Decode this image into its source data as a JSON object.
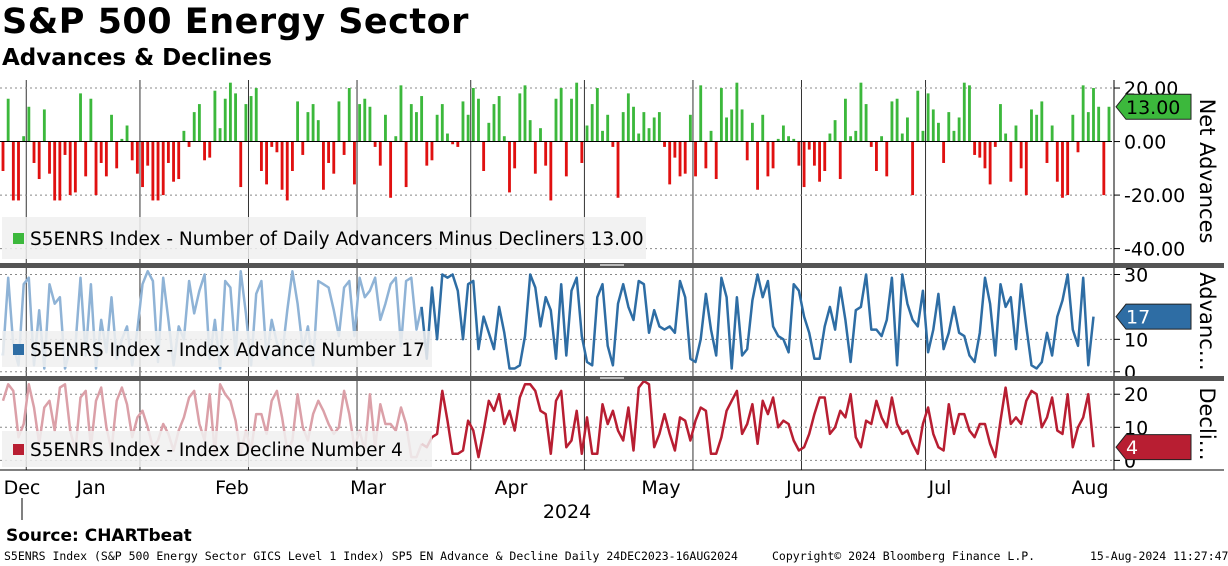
{
  "title": "S&P 500 Energy Sector",
  "subtitle": "Advances & Declines",
  "source": "Source: CHARTbeat",
  "footer": {
    "left": "S5ENRS Index (S&P 500 Energy Sector GICS Level 1 Index) SP5 EN Advance & Decline  Daily 24DEC2023-16AUG2024",
    "middle": "Copyright© 2024 Bloomberg Finance L.P.",
    "right": "15-Aug-2024 11:27:47"
  },
  "colors": {
    "up": "#3cb83c",
    "down": "#e01010",
    "advance_line": "#2e6da4",
    "advance_line_faded": "#8fb3d6",
    "decline_line": "#b81e32",
    "decline_line_faded": "#dba0a8",
    "divider": "#555555"
  },
  "chart_data": [
    {
      "type": "bar",
      "name": "net-advances",
      "ylabel": "Net Advances",
      "legend": "S5ENRS Index  - Number of Daily Advancers Minus Decliners 13.00",
      "last_value_label": "13.00",
      "yticks": [
        "20.00",
        "0.00",
        "-20.00",
        "-40.00"
      ],
      "ytick_values": [
        20,
        0,
        -20,
        -40
      ],
      "ylim": [
        -45,
        23
      ],
      "values": [
        -11,
        16,
        -22,
        -22,
        2,
        13,
        -8,
        -14,
        12,
        -12,
        -22,
        -22,
        -5,
        -20,
        -19,
        18,
        -13,
        16,
        -20,
        -8,
        -13,
        10,
        -10,
        1,
        6,
        -7,
        -12,
        -17,
        -9,
        -22,
        -22,
        -20,
        -8,
        -15,
        -14,
        4,
        -2,
        11,
        14,
        -7,
        -6,
        19,
        5,
        16,
        22,
        18,
        -17,
        14,
        17,
        20,
        -11,
        -16,
        -2,
        -4,
        -18,
        -22,
        -11,
        15,
        -5,
        11,
        14,
        8,
        -18,
        -8,
        -12,
        15,
        -5,
        20,
        -16,
        14,
        16,
        13,
        -2,
        -9,
        10,
        -21,
        2,
        21,
        -17,
        14,
        11,
        17,
        -9,
        -7,
        10,
        14,
        3,
        -1,
        -2,
        15,
        10,
        20,
        16,
        -11,
        7,
        14,
        17,
        2,
        -19,
        -10,
        18,
        21,
        8,
        -12,
        5,
        -9,
        -22,
        16,
        20,
        -13,
        16,
        22,
        -8,
        6,
        14,
        20,
        4,
        10,
        -2,
        -21,
        11,
        18,
        13,
        3,
        11,
        5,
        9,
        11,
        -2,
        -16,
        -6,
        -13,
        -12,
        10,
        -13,
        21,
        -10,
        4,
        -14,
        20,
        9,
        12,
        22,
        12,
        -7,
        7,
        -18,
        10,
        -13,
        -10,
        1,
        6,
        2,
        1,
        -9,
        -17,
        -3,
        -9,
        -15,
        -11,
        3,
        8,
        -14,
        16,
        2,
        4,
        22,
        14,
        -2,
        -11,
        2,
        -13,
        15,
        16,
        3,
        9,
        -20,
        19,
        4,
        18,
        12,
        7,
        -8,
        11,
        4,
        9,
        22,
        21,
        -5,
        -6,
        -10,
        -16,
        -2,
        14,
        3,
        -15,
        6,
        -10,
        -20,
        12,
        10,
        15,
        -8,
        6,
        -15,
        -21,
        -20,
        10,
        -4,
        21,
        11,
        20,
        13,
        -20,
        13
      ],
      "segments": [
        {
          "from": 0,
          "to": 1,
          "values": [
            -11,
            16,
            -22,
            -22
          ]
        }
      ]
    },
    {
      "type": "line",
      "name": "advance-number",
      "ylabel": "Advanc…",
      "legend": "S5ENRS Index  - Index Advance Number 17",
      "last_value_label": "17",
      "yticks": [
        "30",
        "10",
        "0"
      ],
      "ytick_values": [
        30,
        10,
        0
      ],
      "ylim": [
        -1,
        32
      ],
      "values": [
        5,
        29,
        8,
        2,
        27,
        29,
        2,
        19,
        1,
        27,
        21,
        23,
        1,
        7,
        8,
        29,
        5,
        27,
        1,
        16,
        6,
        23,
        4,
        10,
        14,
        2,
        13,
        27,
        31,
        28,
        3,
        29,
        16,
        2,
        14,
        10,
        28,
        18,
        25,
        30,
        4,
        16,
        1,
        28,
        26,
        5,
        31,
        18,
        2,
        24,
        28,
        4,
        16,
        9,
        5,
        19,
        31,
        21,
        7,
        14,
        2,
        28,
        27,
        26,
        19,
        11,
        26,
        28,
        11,
        29,
        23,
        25,
        29,
        16,
        21,
        27,
        29,
        8,
        28,
        29,
        13,
        20,
        4,
        26,
        10,
        30,
        29,
        30,
        25,
        10,
        27,
        28,
        7,
        17,
        12,
        7,
        20,
        12,
        1,
        1,
        2,
        11,
        30,
        26,
        14,
        23,
        19,
        4,
        27,
        5,
        25,
        29,
        11,
        3,
        2,
        23,
        27,
        8,
        2,
        21,
        27,
        20,
        16,
        28,
        27,
        12,
        19,
        14,
        13,
        14,
        12,
        28,
        23,
        4,
        3,
        10,
        24,
        13,
        5,
        29,
        23,
        1,
        23,
        5,
        7,
        22,
        30,
        23,
        28,
        14,
        11,
        10,
        6,
        27,
        25,
        17,
        12,
        4,
        4,
        14,
        20,
        13,
        26,
        16,
        3,
        19,
        20,
        30,
        13,
        13,
        11,
        16,
        29,
        2,
        30,
        21,
        16,
        14,
        25,
        6,
        13,
        24,
        7,
        12,
        20,
        12,
        11,
        5,
        3,
        12,
        29,
        21,
        5,
        27,
        20,
        23,
        7,
        27,
        14,
        2,
        1,
        3,
        12,
        5,
        17,
        22,
        30,
        13,
        8,
        29,
        2,
        17
      ],
      "faded_until_index": 81
    },
    {
      "type": "line",
      "name": "decline-number",
      "ylabel": "Decli…",
      "legend": "S5ENRS Index  - Index Decline Number 4",
      "last_value_label": "4",
      "yticks": [
        "20",
        "10",
        "0"
      ],
      "ytick_values": [
        20,
        10,
        0
      ],
      "ylim": [
        -2,
        24
      ],
      "values": [
        18,
        23,
        21,
        7,
        11,
        23,
        16,
        5,
        16,
        18,
        9,
        22,
        23,
        9,
        3,
        19,
        21,
        4,
        18,
        22,
        10,
        3,
        18,
        22,
        17,
        7,
        13,
        15,
        10,
        4,
        6,
        11,
        8,
        3,
        9,
        13,
        19,
        21,
        11,
        6,
        20,
        2,
        23,
        20,
        18,
        12,
        2,
        9,
        3,
        14,
        14,
        8,
        18,
        21,
        13,
        3,
        6,
        20,
        10,
        6,
        14,
        18,
        15,
        11,
        8,
        10,
        21,
        14,
        4,
        9,
        3,
        20,
        4,
        17,
        11,
        11,
        9,
        16,
        11,
        1,
        1,
        5,
        4,
        7,
        8,
        21,
        12,
        2,
        2,
        3,
        12,
        9,
        1,
        9,
        18,
        15,
        20,
        11,
        15,
        9,
        19,
        23,
        23,
        21,
        15,
        14,
        2,
        18,
        21,
        4,
        6,
        15,
        2,
        13,
        2,
        2,
        17,
        11,
        15,
        9,
        6,
        16,
        3,
        22,
        24,
        23,
        4,
        8,
        14,
        8,
        3,
        13,
        12,
        6,
        12,
        16,
        15,
        2,
        2,
        7,
        15,
        18,
        21,
        8,
        11,
        17,
        5,
        18,
        14,
        19,
        10,
        12,
        11,
        6,
        3,
        4,
        8,
        14,
        19,
        19,
        8,
        10,
        15,
        13,
        20,
        7,
        4,
        12,
        11,
        18,
        13,
        10,
        19,
        11,
        8,
        9,
        5,
        2,
        11,
        16,
        8,
        4,
        3,
        17,
        8,
        14,
        14,
        9,
        7,
        11,
        11,
        5,
        1,
        12,
        22,
        11,
        13,
        11,
        18,
        21,
        20,
        10,
        13,
        19,
        9,
        8,
        20,
        4,
        10,
        13,
        20,
        4
      ],
      "faded_until_index": 81
    }
  ],
  "x_axis": {
    "month_labels": [
      "Dec",
      "Jan",
      "Feb",
      "Mar",
      "Apr",
      "May",
      "Jun",
      "Jul",
      "Aug"
    ],
    "year_label": "2024",
    "month_start_index": [
      0,
      5,
      27,
      48,
      69,
      91,
      113,
      134,
      155,
      179
    ]
  }
}
